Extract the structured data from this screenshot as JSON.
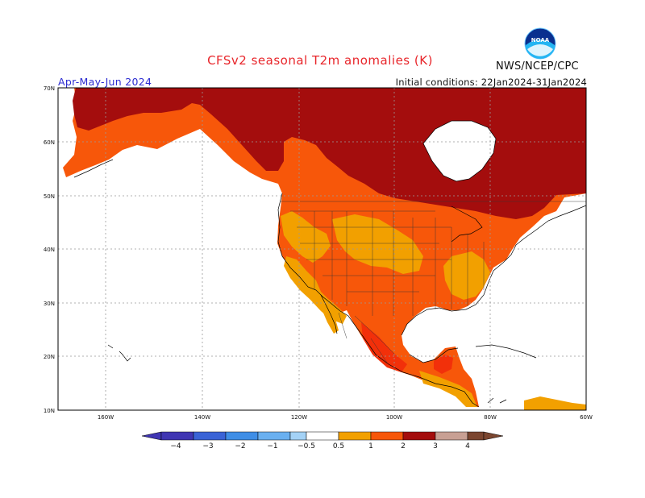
{
  "header": {
    "title": "CFSv2 seasonal T2m anomalies (K)",
    "agency": "NWS/NCEP/CPC",
    "season": "Apr-May-Jun 2024",
    "initial_conditions": "Initial conditions: 22Jan2024-31Jan2024",
    "logo_text": "NOAA"
  },
  "map": {
    "lat_ticks": [
      "10N",
      "20N",
      "30N",
      "40N",
      "50N",
      "60N",
      "70N"
    ],
    "lon_ticks": [
      "160W",
      "140W",
      "120W",
      "100W",
      "80W",
      "60W"
    ]
  },
  "colorbar": {
    "labels": [
      "−4",
      "−3",
      "−2",
      "−1",
      "−0.5",
      "0.5",
      "1",
      "2",
      "3",
      "4"
    ],
    "colors": [
      "#4036b3",
      "#3a63d6",
      "#3f8ee6",
      "#6ab0f0",
      "#a4d2f6",
      "#ffffff",
      "#f2a000",
      "#f7570a",
      "#f2300a",
      "#a40d0d",
      "#c8a094",
      "#7b4630"
    ]
  },
  "colors": {
    "land_05_1": "#f2a000",
    "land_1_2": "#f7570a",
    "land_2_3": "#f2300a",
    "land_3_4": "#a40d0d"
  }
}
